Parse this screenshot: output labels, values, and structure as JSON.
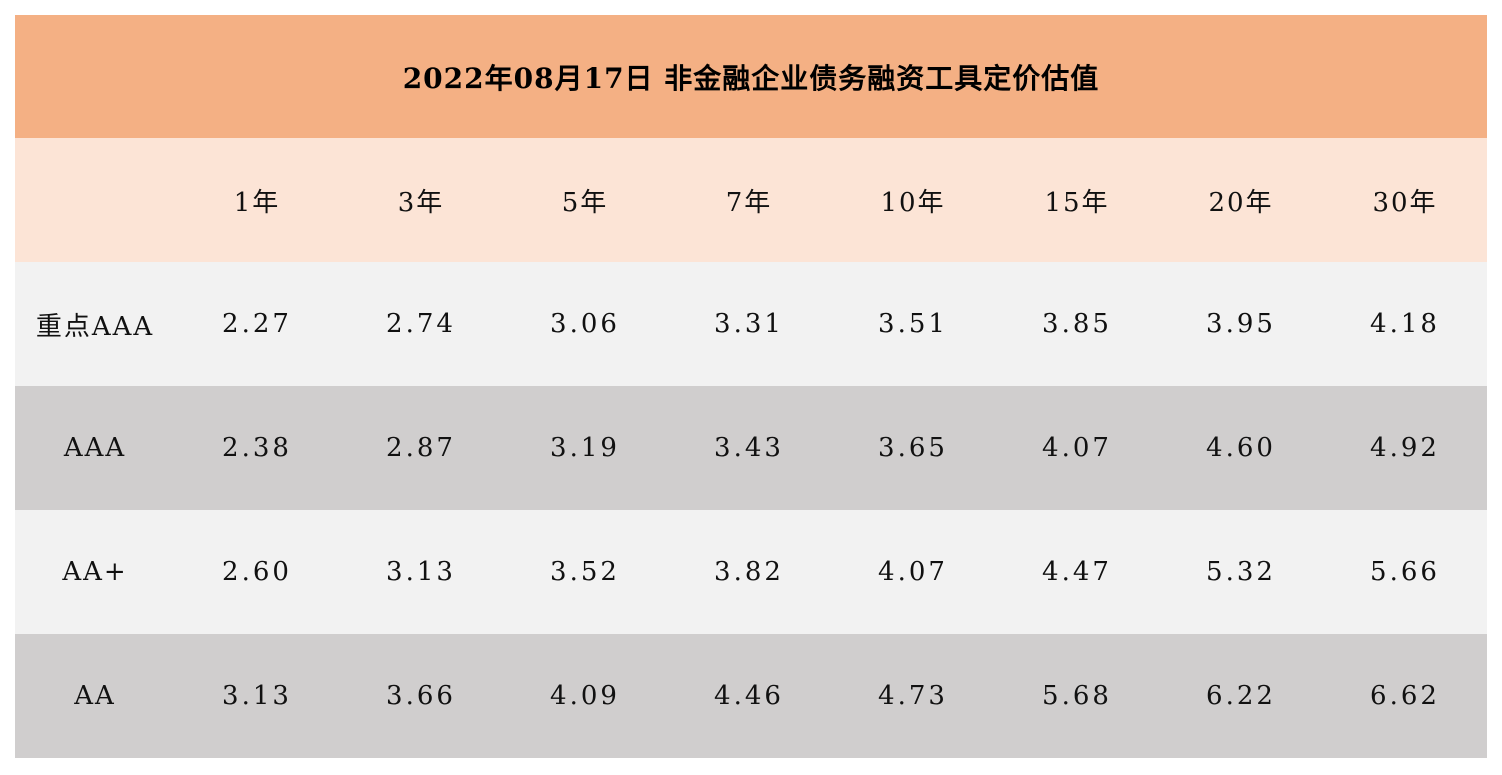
{
  "title": "2022年08月17日  非金融企业债务融资工具定价估值",
  "columns": [
    "1年",
    "3年",
    "5年",
    "7年",
    "10年",
    "15年",
    "20年",
    "30年"
  ],
  "rows": [
    {
      "label": "重点AAA",
      "values": [
        "2.27",
        "2.74",
        "3.06",
        "3.31",
        "3.51",
        "3.85",
        "3.95",
        "4.18"
      ]
    },
    {
      "label": "AAA",
      "values": [
        "2.38",
        "2.87",
        "3.19",
        "3.43",
        "3.65",
        "4.07",
        "4.60",
        "4.92"
      ]
    },
    {
      "label": "AA+",
      "values": [
        "2.60",
        "3.13",
        "3.52",
        "3.82",
        "4.07",
        "4.47",
        "5.32",
        "5.66"
      ]
    },
    {
      "label": "AA",
      "values": [
        "3.13",
        "3.66",
        "4.09",
        "4.46",
        "4.73",
        "5.68",
        "6.22",
        "6.62"
      ]
    }
  ],
  "colors": {
    "title_bg": "#f4b084",
    "header_bg": "#fce4d6",
    "row_light": "#f2f2f2",
    "row_dark": "#d0cece"
  }
}
